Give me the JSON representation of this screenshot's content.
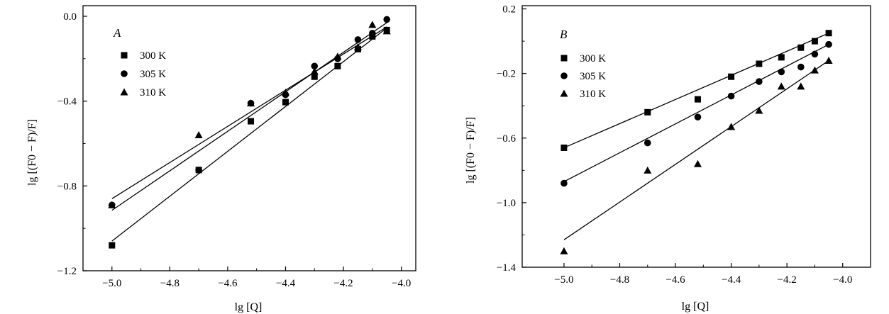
{
  "chart_data": [
    {
      "type": "scatter",
      "panel_label": "A",
      "xlabel": "lg [Q]",
      "ylabel": "lg [(F0 − F)/F]",
      "xlim": [
        -5.1,
        -3.95
      ],
      "ylim": [
        -1.2,
        0.05
      ],
      "x_ticks": [
        -5.0,
        -4.8,
        -4.6,
        -4.4,
        -4.2,
        -4.0
      ],
      "x_tick_labels": [
        "−5.0",
        "−4.8",
        "−4.6",
        "−4.4",
        "−4.2",
        "−4.0"
      ],
      "y_ticks": [
        0.0,
        -0.4,
        -0.8,
        -1.2
      ],
      "y_tick_labels": [
        "0.0",
        "−0.4",
        "−0.8",
        "−1.2"
      ],
      "grid": false,
      "legend_position": "top-left",
      "series": [
        {
          "name": "300 K",
          "marker": "square",
          "x": [
            -5.0,
            -4.7,
            -4.52,
            -4.4,
            -4.3,
            -4.22,
            -4.15,
            -4.1,
            -4.05
          ],
          "y": [
            -1.08,
            -0.725,
            -0.495,
            -0.405,
            -0.285,
            -0.235,
            -0.155,
            -0.095,
            -0.065
          ],
          "fit": [
            [
              -5.0,
              -1.06
            ],
            [
              -4.05,
              -0.055
            ]
          ]
        },
        {
          "name": "305 K",
          "marker": "circle",
          "x": [
            -5.0,
            -4.7,
            -4.52,
            -4.4,
            -4.3,
            -4.22,
            -4.15,
            -4.1,
            -4.05
          ],
          "y": [
            -0.89,
            -0.725,
            -0.41,
            -0.37,
            -0.235,
            -0.2,
            -0.11,
            -0.08,
            -0.015
          ],
          "fit": [
            [
              -5.0,
              -0.915
            ],
            [
              -4.05,
              -0.03
            ]
          ]
        },
        {
          "name": "310 K",
          "marker": "triangle",
          "x": [
            -5.0,
            -4.7,
            -4.52,
            -4.4,
            -4.3,
            -4.22,
            -4.15,
            -4.1,
            -4.05
          ],
          "y": [
            -0.89,
            -0.56,
            -0.41,
            -0.36,
            -0.26,
            -0.19,
            -0.145,
            -0.04,
            -0.07
          ],
          "fit": [
            [
              -5.0,
              -0.86
            ],
            [
              -4.05,
              -0.05
            ]
          ]
        }
      ]
    },
    {
      "type": "scatter",
      "panel_label": "B",
      "xlabel": "lg [Q]",
      "ylabel": "lg [(F0 − F)/F]",
      "xlim": [
        -5.15,
        -3.9
      ],
      "ylim": [
        -1.4,
        0.22
      ],
      "x_ticks": [
        -5.0,
        -4.8,
        -4.6,
        -4.4,
        -4.2,
        -4.0
      ],
      "x_tick_labels": [
        "−5.0",
        "−4.8",
        "−4.6",
        "−4.4",
        "−4.2",
        "−4.0"
      ],
      "y_ticks": [
        0.2,
        -0.2,
        -0.6,
        -1.0,
        -1.4
      ],
      "y_tick_labels": [
        "0.2",
        "−0.2",
        "−0.6",
        "−1.0",
        "−1.4"
      ],
      "grid": false,
      "legend_position": "top-left",
      "series": [
        {
          "name": "300 K",
          "marker": "square",
          "x": [
            -5.0,
            -4.7,
            -4.52,
            -4.4,
            -4.3,
            -4.22,
            -4.15,
            -4.1,
            -4.05
          ],
          "y": [
            -0.66,
            -0.44,
            -0.36,
            -0.22,
            -0.14,
            -0.1,
            -0.04,
            0.0,
            0.05
          ],
          "fit": [
            [
              -5.0,
              -0.66
            ],
            [
              -4.05,
              0.05
            ]
          ]
        },
        {
          "name": "305 K",
          "marker": "circle",
          "x": [
            -5.0,
            -4.7,
            -4.52,
            -4.4,
            -4.3,
            -4.22,
            -4.15,
            -4.1,
            -4.05
          ],
          "y": [
            -0.88,
            -0.63,
            -0.47,
            -0.34,
            -0.25,
            -0.19,
            -0.16,
            -0.08,
            -0.02
          ],
          "fit": [
            [
              -5.0,
              -0.87
            ],
            [
              -4.05,
              -0.02
            ]
          ]
        },
        {
          "name": "310 K",
          "marker": "triangle",
          "x": [
            -5.0,
            -4.7,
            -4.52,
            -4.4,
            -4.3,
            -4.22,
            -4.15,
            -4.1,
            -4.05
          ],
          "y": [
            -1.3,
            -0.8,
            -0.76,
            -0.53,
            -0.43,
            -0.28,
            -0.28,
            -0.18,
            -0.12
          ],
          "fit": [
            [
              -5.0,
              -1.23
            ],
            [
              -4.05,
              -0.12
            ]
          ]
        }
      ]
    }
  ]
}
